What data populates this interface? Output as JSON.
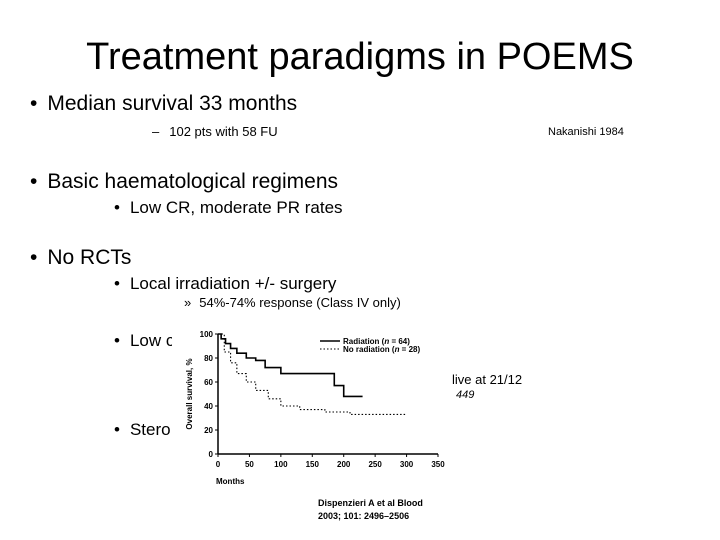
{
  "slide": {
    "title": "Treatment paradigms in POEMS",
    "bullets": [
      {
        "text": "Median survival 33 months"
      },
      {
        "text": "102 pts with 58 FU"
      },
      {
        "text": "Nakanishi 1984"
      },
      {
        "text": "Basic haematological regimens"
      },
      {
        "text": "Low CR, moderate PR rates"
      },
      {
        "text": "No RCTs"
      },
      {
        "text": "Local irradiation +/- surgery"
      },
      {
        "text": "54%-74% response (Class IV only)"
      },
      {
        "text": "Low c"
      },
      {
        "text": "live at 21/12"
      },
      {
        "text": "449"
      },
      {
        "text": "Stero"
      }
    ],
    "citation": {
      "line1": "Dispenzieri A et al Blood",
      "line2": "2003; 101: 2496–2506"
    }
  },
  "chart_data": {
    "type": "line",
    "ylabel": "Overall survival, %",
    "xlabel": "Months",
    "xlim": [
      0,
      350
    ],
    "ylim": [
      0,
      100
    ],
    "xticks": [
      0,
      50,
      100,
      150,
      200,
      250,
      300,
      350
    ],
    "yticks": [
      0,
      20,
      40,
      60,
      80,
      100
    ],
    "series": [
      {
        "name": "Radiation (n = 64)",
        "style": "solid",
        "x": [
          0,
          5,
          12,
          20,
          30,
          45,
          60,
          75,
          100,
          150,
          185,
          200,
          230
        ],
        "y": [
          100,
          96,
          92,
          88,
          84,
          80,
          78,
          72,
          67,
          67,
          57,
          48,
          48
        ]
      },
      {
        "name": "No radiation (n = 28)",
        "style": "dotted",
        "x": [
          0,
          10,
          20,
          30,
          45,
          60,
          80,
          100,
          130,
          170,
          210,
          300
        ],
        "y": [
          100,
          85,
          76,
          67,
          60,
          53,
          46,
          40,
          37,
          35,
          33,
          33
        ]
      }
    ],
    "legend_labels": [
      "Radiation (",
      "n",
      " = 64)",
      "No radiation (",
      "n",
      " = 28)"
    ]
  }
}
